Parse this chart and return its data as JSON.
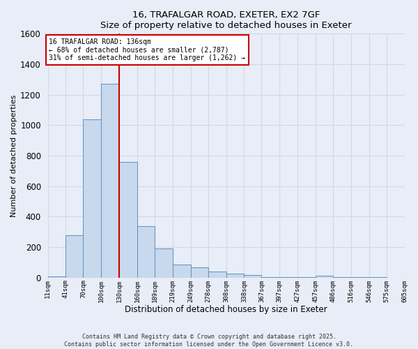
{
  "title_line1": "16, TRAFALGAR ROAD, EXETER, EX2 7GF",
  "title_line2": "Size of property relative to detached houses in Exeter",
  "xlabel": "Distribution of detached houses by size in Exeter",
  "ylabel": "Number of detached properties",
  "bar_color": "#c8d8ed",
  "bar_edge_color": "#6090c0",
  "background_color": "#e8edf7",
  "grid_color": "#d0d8e8",
  "bins": [
    11,
    41,
    70,
    100,
    130,
    160,
    189,
    219,
    249,
    278,
    308,
    338,
    367,
    397,
    427,
    457,
    486,
    516,
    546,
    575,
    605
  ],
  "bin_labels": [
    "11sqm",
    "41sqm",
    "70sqm",
    "100sqm",
    "130sqm",
    "160sqm",
    "189sqm",
    "219sqm",
    "249sqm",
    "278sqm",
    "308sqm",
    "338sqm",
    "367sqm",
    "397sqm",
    "427sqm",
    "457sqm",
    "486sqm",
    "516sqm",
    "546sqm",
    "575sqm",
    "605sqm"
  ],
  "values": [
    10,
    280,
    1040,
    1270,
    760,
    340,
    190,
    85,
    70,
    40,
    28,
    18,
    5,
    5,
    5,
    14,
    2,
    2,
    2,
    0,
    14
  ],
  "ylim": [
    0,
    1600
  ],
  "yticks": [
    0,
    200,
    400,
    600,
    800,
    1000,
    1200,
    1400,
    1600
  ],
  "vline_x": 130,
  "vline_color": "#cc0000",
  "annotation_text": "16 TRAFALGAR ROAD: 136sqm\n← 68% of detached houses are smaller (2,787)\n31% of semi-detached houses are larger (1,262) →",
  "annotation_box_facecolor": "#ffffff",
  "annotation_box_edgecolor": "#cc0000",
  "footer_line1": "Contains HM Land Registry data © Crown copyright and database right 2025.",
  "footer_line2": "Contains public sector information licensed under the Open Government Licence v3.0.",
  "figsize": [
    6.0,
    5.0
  ],
  "dpi": 100
}
